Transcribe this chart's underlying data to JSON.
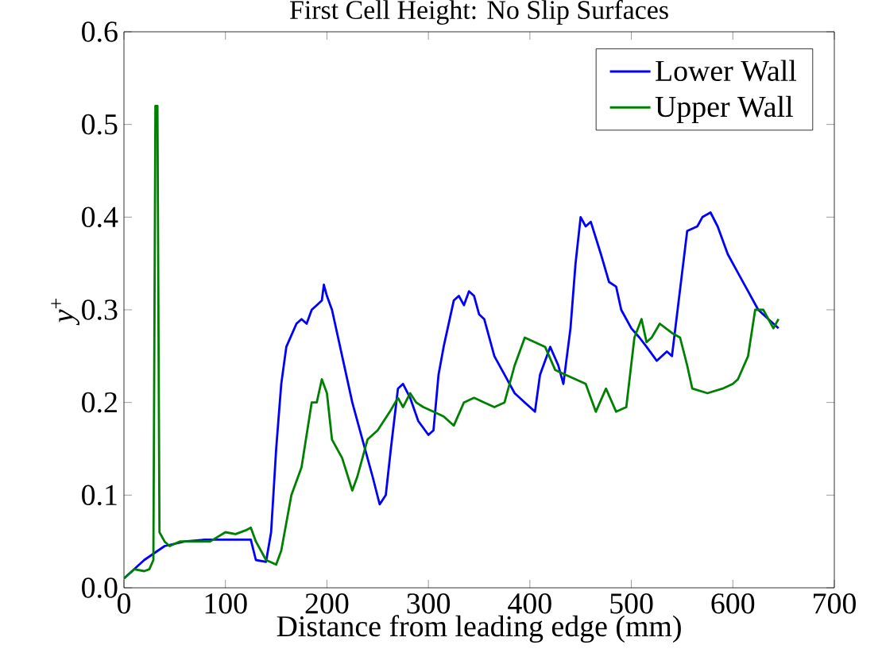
{
  "chart_data": {
    "type": "line",
    "title": "First Cell Height: No Slip Surfaces",
    "xlabel": "Distance from leading edge (mm)",
    "ylabel": "*y*$^{+}$",
    "xlim": [
      0,
      700
    ],
    "xticks": [
      0,
      100,
      200,
      300,
      400,
      500,
      600,
      700
    ],
    "ylim": [
      0,
      0.6
    ],
    "yticks": [
      {
        "value": 0,
        "label": "0.0"
      },
      {
        "value": 0.1,
        "label": "0.1"
      },
      {
        "value": 0.2,
        "label": "0.2"
      },
      {
        "value": 0.3,
        "label": "0.3"
      },
      {
        "value": 0.4,
        "label": "0.4"
      },
      {
        "value": 0.5,
        "label": "0.5"
      },
      {
        "value": 0.6,
        "label": "0.6"
      }
    ],
    "legend": "top right",
    "grid": false,
    "marker": "none",
    "line_style": "solid",
    "series": [
      {
        "name": "Lower Wall",
        "color": "#0000ff",
        "x": [
          0,
          20,
          40,
          60,
          80,
          100,
          125,
          130,
          140,
          145,
          150,
          155,
          160,
          170,
          175,
          180,
          185,
          190,
          195,
          197,
          200,
          205,
          215,
          225,
          235,
          245,
          252,
          258,
          263,
          270,
          275,
          282,
          290,
          300,
          305,
          310,
          315,
          325,
          330,
          335,
          340,
          345,
          350,
          355,
          365,
          375,
          385,
          395,
          405,
          410,
          420,
          428,
          433,
          440,
          445,
          450,
          455,
          460,
          470,
          478,
          485,
          490,
          500,
          508,
          515,
          525,
          535,
          540,
          550,
          555,
          565,
          570,
          578,
          585,
          595,
          605,
          615,
          625,
          635,
          645
        ],
        "values": [
          0.01,
          0.03,
          0.045,
          0.05,
          0.052,
          0.052,
          0.052,
          0.03,
          0.028,
          0.06,
          0.15,
          0.22,
          0.26,
          0.285,
          0.29,
          0.285,
          0.3,
          0.305,
          0.31,
          0.327,
          0.315,
          0.3,
          0.25,
          0.2,
          0.16,
          0.12,
          0.09,
          0.1,
          0.15,
          0.215,
          0.22,
          0.205,
          0.18,
          0.165,
          0.17,
          0.23,
          0.26,
          0.31,
          0.315,
          0.305,
          0.32,
          0.315,
          0.295,
          0.29,
          0.25,
          0.23,
          0.21,
          0.2,
          0.19,
          0.23,
          0.26,
          0.24,
          0.22,
          0.28,
          0.35,
          0.4,
          0.39,
          0.395,
          0.36,
          0.33,
          0.325,
          0.3,
          0.28,
          0.27,
          0.26,
          0.245,
          0.255,
          0.25,
          0.34,
          0.385,
          0.39,
          0.4,
          0.405,
          0.39,
          0.36,
          0.34,
          0.32,
          0.3,
          0.29,
          0.28
        ]
      },
      {
        "name": "Upper Wall",
        "color": "#008000",
        "x": [
          0,
          10,
          20,
          25,
          29,
          31,
          33,
          35,
          40,
          45,
          55,
          70,
          85,
          100,
          110,
          120,
          125,
          130,
          140,
          150,
          155,
          165,
          175,
          185,
          190,
          195,
          200,
          205,
          215,
          225,
          230,
          240,
          250,
          262,
          270,
          275,
          282,
          288,
          295,
          305,
          315,
          325,
          335,
          345,
          355,
          365,
          375,
          385,
          395,
          405,
          415,
          425,
          435,
          445,
          455,
          465,
          475,
          485,
          495,
          503,
          510,
          515,
          520,
          528,
          540,
          548,
          555,
          560,
          575,
          590,
          600,
          605,
          615,
          622,
          630,
          640,
          645
        ],
        "values": [
          0.01,
          0.02,
          0.018,
          0.02,
          0.03,
          0.52,
          0.52,
          0.06,
          0.05,
          0.045,
          0.05,
          0.05,
          0.05,
          0.06,
          0.058,
          0.062,
          0.065,
          0.05,
          0.03,
          0.025,
          0.04,
          0.1,
          0.13,
          0.2,
          0.2,
          0.225,
          0.21,
          0.16,
          0.14,
          0.105,
          0.12,
          0.16,
          0.17,
          0.19,
          0.205,
          0.195,
          0.21,
          0.2,
          0.195,
          0.19,
          0.185,
          0.175,
          0.2,
          0.205,
          0.2,
          0.195,
          0.2,
          0.24,
          0.27,
          0.265,
          0.26,
          0.235,
          0.23,
          0.225,
          0.22,
          0.19,
          0.215,
          0.19,
          0.195,
          0.27,
          0.29,
          0.265,
          0.27,
          0.285,
          0.275,
          0.27,
          0.24,
          0.215,
          0.21,
          0.215,
          0.22,
          0.225,
          0.25,
          0.3,
          0.3,
          0.28,
          0.29
        ]
      }
    ]
  }
}
